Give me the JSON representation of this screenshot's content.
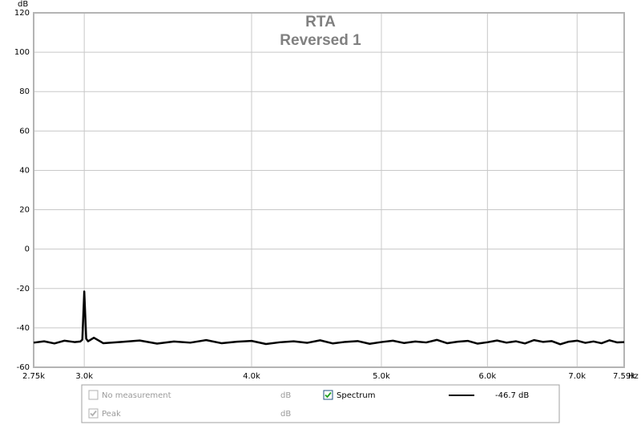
{
  "chart_data": {
    "type": "line",
    "title": "RTA",
    "subtitle": "Reversed 1",
    "xlabel": "Hz",
    "ylabel": "dB",
    "xscale": "log",
    "grid": true,
    "xlim": [
      2750,
      7590
    ],
    "ylim": [
      -60,
      120
    ],
    "xticks": [
      {
        "value": 2750,
        "label": "2.75k"
      },
      {
        "value": 3000,
        "label": "3.0k"
      },
      {
        "value": 4000,
        "label": "4.0k"
      },
      {
        "value": 5000,
        "label": "5.0k"
      },
      {
        "value": 6000,
        "label": "6.0k"
      },
      {
        "value": 7000,
        "label": "7.0k"
      },
      {
        "value": 7590,
        "label": "7.59k"
      }
    ],
    "yticks": [
      -60,
      -40,
      -20,
      0,
      20,
      40,
      60,
      80,
      100,
      120
    ],
    "x": [
      2750,
      2800,
      2850,
      2900,
      2950,
      2980,
      2990,
      3000,
      3010,
      3020,
      3050,
      3100,
      3200,
      3300,
      3400,
      3500,
      3600,
      3700,
      3800,
      3900,
      4000,
      4100,
      4200,
      4300,
      4400,
      4500,
      4600,
      4700,
      4800,
      4900,
      5000,
      5100,
      5200,
      5300,
      5400,
      5500,
      5600,
      5700,
      5800,
      5900,
      6000,
      6100,
      6200,
      6300,
      6400,
      6500,
      6600,
      6700,
      6800,
      6900,
      7000,
      7100,
      7200,
      7300,
      7400,
      7500,
      7590
    ],
    "series": [
      {
        "name": "Spectrum",
        "color": "#000000",
        "values": [
          -47.5,
          -46.8,
          -47.9,
          -46.5,
          -47.2,
          -46.9,
          -46.0,
          -21.5,
          -45.5,
          -46.8,
          -45.0,
          -47.8,
          -47.1,
          -46.4,
          -48.0,
          -46.9,
          -47.5,
          -46.2,
          -47.8,
          -47.0,
          -46.6,
          -48.2,
          -47.3,
          -46.8,
          -47.6,
          -46.3,
          -47.9,
          -47.1,
          -46.7,
          -48.1,
          -47.2,
          -46.5,
          -47.7,
          -46.9,
          -47.4,
          -46.1,
          -47.8,
          -47.0,
          -46.6,
          -48.0,
          -47.3,
          -46.4,
          -47.5,
          -46.8,
          -47.9,
          -46.2,
          -47.1,
          -46.7,
          -48.3,
          -47.0,
          -46.5,
          -47.6,
          -46.9,
          -47.8,
          -46.3,
          -47.4,
          -47.2
        ]
      }
    ]
  },
  "legend_panel": {
    "readout": "-46.7 dB",
    "items": [
      {
        "label": "No measurement",
        "unit": "dB",
        "checked": false,
        "enabled": false
      },
      {
        "label": "Peak",
        "unit": "dB",
        "checked": true,
        "enabled": false
      }
    ]
  }
}
